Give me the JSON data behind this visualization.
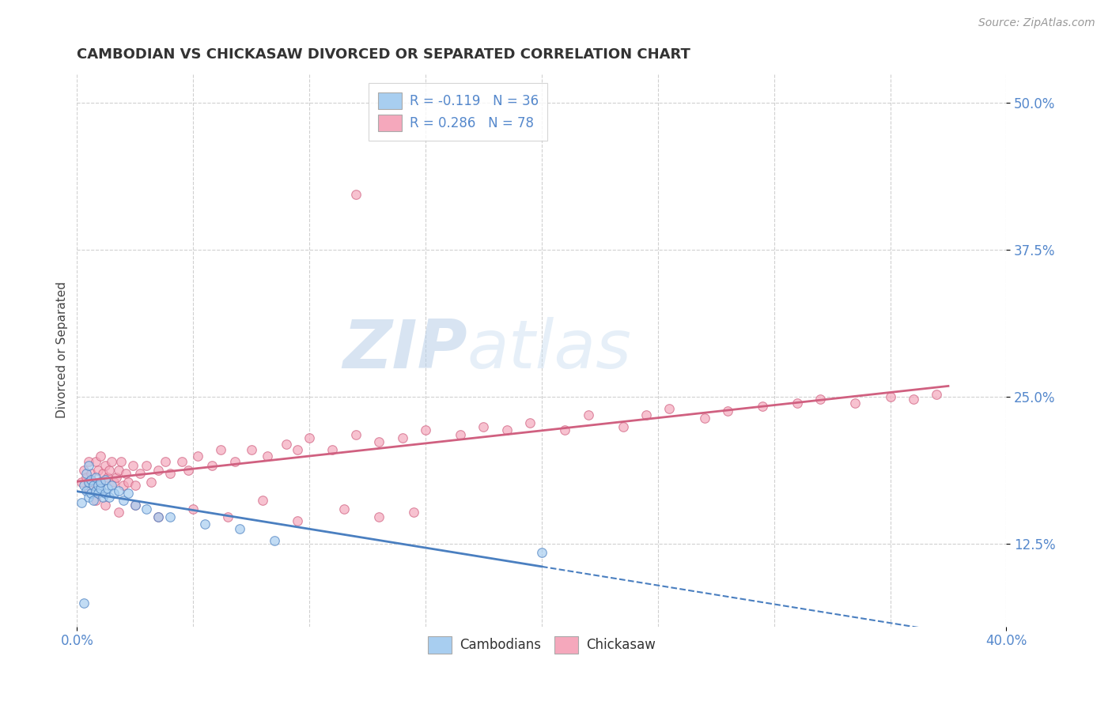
{
  "title": "CAMBODIAN VS CHICKASAW DIVORCED OR SEPARATED CORRELATION CHART",
  "source_text": "Source: ZipAtlas.com",
  "ylabel": "Divorced or Separated",
  "xlim": [
    0.0,
    0.4
  ],
  "ylim": [
    0.055,
    0.525
  ],
  "ytick_labels": [
    "12.5%",
    "25.0%",
    "37.5%",
    "50.0%"
  ],
  "ytick_vals": [
    0.125,
    0.25,
    0.375,
    0.5
  ],
  "grid_color": "#d0d0d0",
  "background_color": "#ffffff",
  "watermark_text": "ZIPatlas",
  "legend_r1_text": "R = -0.119   N = 36",
  "legend_r2_text": "R = 0.286   N = 78",
  "cambodian_color": "#a8cef0",
  "chickasaw_color": "#f5a8bc",
  "cambodian_line_color": "#4a7fc0",
  "chickasaw_line_color": "#d06080",
  "cambodian_points_x": [
    0.002,
    0.003,
    0.004,
    0.004,
    0.005,
    0.005,
    0.005,
    0.006,
    0.006,
    0.007,
    0.007,
    0.008,
    0.008,
    0.009,
    0.009,
    0.01,
    0.01,
    0.011,
    0.012,
    0.012,
    0.013,
    0.014,
    0.015,
    0.016,
    0.018,
    0.02,
    0.022,
    0.025,
    0.03,
    0.035,
    0.04,
    0.055,
    0.07,
    0.085,
    0.2,
    0.003
  ],
  "cambodian_points_y": [
    0.16,
    0.175,
    0.185,
    0.17,
    0.178,
    0.165,
    0.192,
    0.168,
    0.18,
    0.175,
    0.162,
    0.17,
    0.182,
    0.175,
    0.168,
    0.172,
    0.178,
    0.165,
    0.168,
    0.18,
    0.172,
    0.165,
    0.175,
    0.168,
    0.17,
    0.162,
    0.168,
    0.158,
    0.155,
    0.148,
    0.148,
    0.142,
    0.138,
    0.128,
    0.118,
    0.075
  ],
  "chickasaw_points_x": [
    0.002,
    0.003,
    0.004,
    0.005,
    0.005,
    0.006,
    0.007,
    0.008,
    0.009,
    0.01,
    0.01,
    0.011,
    0.012,
    0.013,
    0.014,
    0.015,
    0.016,
    0.017,
    0.018,
    0.019,
    0.02,
    0.021,
    0.022,
    0.024,
    0.025,
    0.027,
    0.03,
    0.032,
    0.035,
    0.038,
    0.04,
    0.045,
    0.048,
    0.052,
    0.058,
    0.062,
    0.068,
    0.075,
    0.082,
    0.09,
    0.095,
    0.1,
    0.11,
    0.12,
    0.13,
    0.14,
    0.15,
    0.165,
    0.175,
    0.185,
    0.195,
    0.21,
    0.22,
    0.235,
    0.245,
    0.255,
    0.27,
    0.28,
    0.295,
    0.31,
    0.32,
    0.335,
    0.35,
    0.36,
    0.37,
    0.008,
    0.012,
    0.018,
    0.025,
    0.035,
    0.05,
    0.065,
    0.08,
    0.095,
    0.115,
    0.13,
    0.145,
    0.12
  ],
  "chickasaw_points_y": [
    0.178,
    0.188,
    0.182,
    0.195,
    0.172,
    0.185,
    0.178,
    0.195,
    0.188,
    0.178,
    0.2,
    0.185,
    0.192,
    0.182,
    0.188,
    0.195,
    0.178,
    0.182,
    0.188,
    0.195,
    0.175,
    0.185,
    0.178,
    0.192,
    0.175,
    0.185,
    0.192,
    0.178,
    0.188,
    0.195,
    0.185,
    0.195,
    0.188,
    0.2,
    0.192,
    0.205,
    0.195,
    0.205,
    0.2,
    0.21,
    0.205,
    0.215,
    0.205,
    0.218,
    0.212,
    0.215,
    0.222,
    0.218,
    0.225,
    0.222,
    0.228,
    0.222,
    0.235,
    0.225,
    0.235,
    0.24,
    0.232,
    0.238,
    0.242,
    0.245,
    0.248,
    0.245,
    0.25,
    0.248,
    0.252,
    0.162,
    0.158,
    0.152,
    0.158,
    0.148,
    0.155,
    0.148,
    0.162,
    0.145,
    0.155,
    0.148,
    0.152,
    0.422
  ]
}
